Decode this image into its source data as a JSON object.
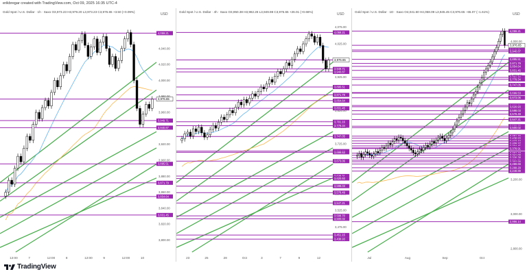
{
  "header": {
    "created_text": "erikbregar created with TradingView.com, Oct 09, 2025 16:35 UTC-4"
  },
  "footer": {
    "brand": "TradingView"
  },
  "colors": {
    "level_line": "#9c27b0",
    "trend_line": "#4caf50",
    "ma_blue": "#64b5f6",
    "ma_orange": "#ffb74d",
    "up_candle": "#ffffff",
    "down_candle": "#000000"
  },
  "panels": [
    {
      "title": "Gold Spot / U.S. Dollar · 1h · Saxo  O3,973.23 H3,979.20 L3,973.23 C3,976.65 +3.50 (+0.09%)",
      "currency": "USD",
      "current_price": "3,976.65",
      "chart_data": {
        "type": "candlestick",
        "timeframe": "1h",
        "ylim": [
          3785,
          4075
        ],
        "y_ticks": [
          3800,
          3820,
          3840,
          3860,
          3880,
          3900,
          3920,
          3940,
          3960,
          3980,
          4000,
          4020,
          4040,
          4060
        ],
        "x_ticks": [
          "12:00",
          "7",
          "12:00",
          "8",
          "12:00",
          "9",
          "12:00",
          "10"
        ],
        "levels": [
          4059.21,
          3976.65,
          3949.71,
          3940.87,
          3895.51,
          3871.79,
          3854.64,
          3831.45
        ],
        "close": [
          3860,
          3875,
          3870,
          3890,
          3905,
          3898,
          3915,
          3930,
          3925,
          3945,
          3960,
          3952,
          3966,
          3975,
          3968,
          3985,
          4000,
          3992,
          4006,
          4020,
          4012,
          4030,
          4045,
          4038,
          4050,
          4058,
          4044,
          4030,
          4042,
          4052,
          4035,
          4048,
          4055,
          4040,
          4020,
          4030,
          4015,
          4025,
          4040,
          4052,
          4060,
          4045,
          4000,
          3965,
          3945,
          3958,
          3970,
          3965,
          3976.65
        ]
      }
    },
    {
      "title": "Gold Spot / U.S. Dollar · 4h · Saxo  O3,950.38 H3,982.28 L3,949.98 C3,976.65 +26.01 (+0.66%)",
      "currency": "USD",
      "current_price": "3,976.65",
      "chart_data": {
        "type": "candlestick",
        "timeframe": "4h",
        "ylim": [
          3400,
          4095
        ],
        "y_ticks": [
          3475,
          3525,
          3575,
          3625,
          3675,
          3725,
          3775,
          3825,
          3875,
          3925,
          3975,
          4025,
          4075
        ],
        "x_ticks": [
          "23",
          "25",
          "28",
          "Oct",
          "3",
          "7",
          "9",
          "12"
        ],
        "levels": [
          4059.21,
          3976.65,
          3949.71,
          3940.87,
          3895.51,
          3871.79,
          3854.64,
          3831.45,
          3791.16,
          3779.34,
          3747.05,
          3703.02,
          3699.53,
          3673.06,
          3628.31,
          3620.93,
          3598.03,
          3578.49,
          3547.21,
          3508.7,
          3500.02,
          3451.15,
          3438.93
        ],
        "close": [
          3740,
          3755,
          3760,
          3748,
          3770,
          3762,
          3775,
          3758,
          3745,
          3752,
          3768,
          3780,
          3772,
          3790,
          3805,
          3798,
          3812,
          3825,
          3818,
          3835,
          3850,
          3842,
          3858,
          3848,
          3862,
          3875,
          3868,
          3882,
          3895,
          3890,
          3905,
          3918,
          3910,
          3928,
          3942,
          3935,
          3950,
          3968,
          3960,
          3978,
          3995,
          4010,
          4002,
          4025,
          4040,
          4055,
          4048,
          4030,
          4045,
          4020,
          3975,
          3950,
          3976.65
        ]
      }
    },
    {
      "title": "Gold Spot / U.S. Dollar · 1D · Saxo  O4,041.60 H4,058.09 L3,945.45 C3,976.65 −65.07 (−1.61%)",
      "currency": "USD",
      "current_price": "3,976.65",
      "chart_data": {
        "type": "candlestick",
        "timeframe": "1D",
        "ylim": [
          2780,
          4120
        ],
        "y_ticks": [
          2800,
          3000,
          3200,
          3400,
          3600,
          3800,
          4000
        ],
        "x_ticks": [
          "Jul",
          "Aug",
          "Sep",
          "Oct"
        ],
        "levels": [
          4059.21,
          3976.65,
          3949.71,
          3940.87,
          3895.51,
          3871.79,
          3854.64,
          3831.45,
          3791.16,
          3779.34,
          3747.05,
          3703.02,
          3699.53,
          3673.06,
          3628.31,
          3620.93,
          3598.03,
          3578.49,
          3547.21,
          3508.7,
          3500.02,
          3451.15,
          3438.93,
          3423.1,
          3409.27,
          3394.45,
          3383.11,
          3378.91,
          3352.18,
          3341.0,
          3326.38,
          3311.6,
          3302.99,
          3289.69,
          3268.29,
          3248.88,
          2956.14
        ],
        "close": [
          3340,
          3350,
          3330,
          3345,
          3360,
          3352,
          3340,
          3335,
          3348,
          3362,
          3355,
          3370,
          3385,
          3380,
          3395,
          3410,
          3402,
          3420,
          3435,
          3428,
          3445,
          3440,
          3425,
          3410,
          3395,
          3380,
          3370,
          3355,
          3348,
          3360,
          3375,
          3368,
          3385,
          3398,
          3390,
          3405,
          3420,
          3412,
          3428,
          3442,
          3450,
          3438,
          3425,
          3440,
          3455,
          3470,
          3490,
          3515,
          3540,
          3560,
          3580,
          3600,
          3620,
          3645,
          3640,
          3665,
          3690,
          3710,
          3735,
          3760,
          3790,
          3820,
          3840,
          3860,
          3880,
          3910,
          3940,
          3965,
          4000,
          4040,
          4059,
          3976.65
        ]
      }
    }
  ]
}
